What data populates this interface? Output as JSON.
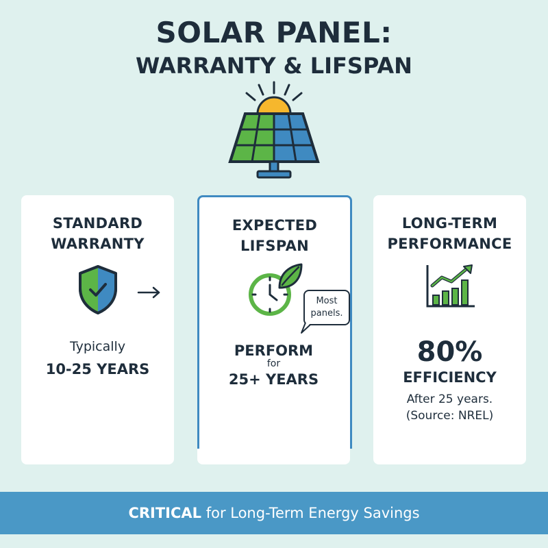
{
  "title": {
    "line1": "SOLAR PANEL:",
    "line2": "WARRANTY & LIFSPAN"
  },
  "cards": {
    "warranty": {
      "heading_line1": "STANDARD",
      "heading_line2": "WARRANTY",
      "text_line1": "Typically",
      "text_line2": "10-25 YEARS",
      "icon": "shield-check-icon"
    },
    "lifespan": {
      "heading_line1": "EXPECTED",
      "heading_line2": "LIFSPAN",
      "text_line1": "PERFORM",
      "text_line2": "for",
      "text_line3": "25+ YEARS",
      "bubble_line1": "Most",
      "bubble_line2": "panels.",
      "icon": "clock-leaf-icon"
    },
    "performance": {
      "heading_line1": "LONG-TERM",
      "heading_line2": "PERFORMANCE",
      "percent": "80%",
      "label": "EFFICIENCY",
      "note_line1": "After 25 years.",
      "note_line2": "(Source: NREL)",
      "icon": "growth-chart-icon"
    }
  },
  "footer": {
    "bold": "CRITICAL",
    "rest": " for Long-Term Energy Savings"
  },
  "colors": {
    "background": "#dff1ee",
    "accent_blue": "#3f8ac1",
    "accent_green": "#5cb547",
    "sun": "#f6b72d",
    "dark": "#1e2d3b"
  }
}
